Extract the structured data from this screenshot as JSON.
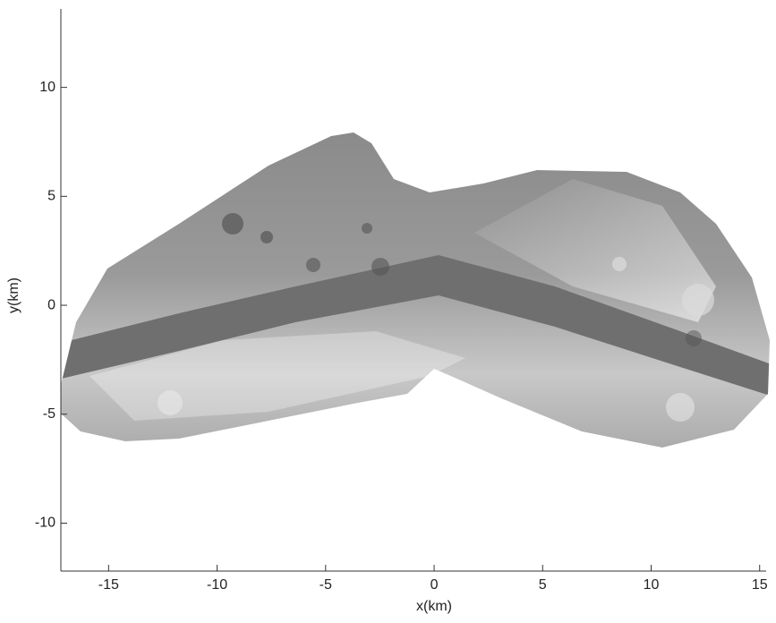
{
  "chart_data": {
    "type": "image",
    "xlabel": "x(km)",
    "ylabel": "y(km)",
    "xlim": [
      -17.2,
      15.3
    ],
    "ylim": [
      -12.2,
      13.6
    ],
    "xticks": [
      -15,
      -10,
      -5,
      0,
      5,
      10,
      15
    ],
    "yticks": [
      -10,
      -5,
      0,
      5,
      10
    ],
    "grid": false
  }
}
